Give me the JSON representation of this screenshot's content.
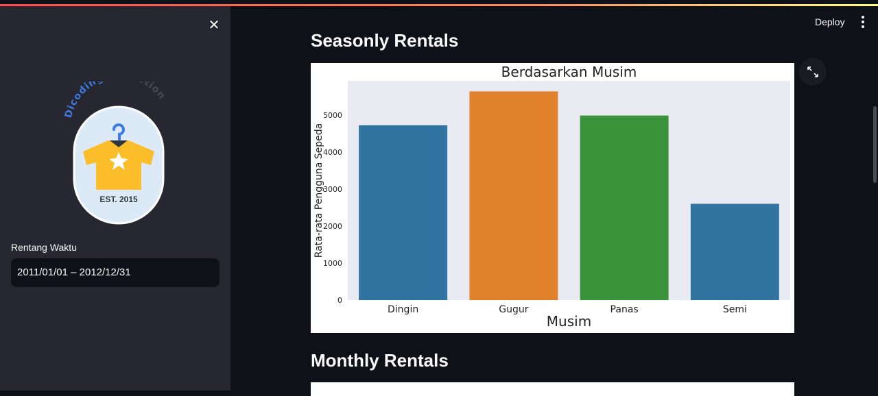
{
  "header": {
    "deploy_label": "Deploy"
  },
  "sidebar": {
    "logo": {
      "text_left": "Dicoding",
      "text_right": "Collection",
      "est": "EST. 2015"
    },
    "date_label": "Rentang Waktu",
    "date_value": "2011/01/01 – 2012/12/31"
  },
  "main": {
    "section1_title": "Seasonly Rentals",
    "section2_title": "Monthly Rentals"
  },
  "chart_data": {
    "type": "bar",
    "title": "Berdasarkan Musim",
    "xlabel": "Musim",
    "ylabel": "Rata-rata Pengguna Sepeda",
    "categories": [
      "Dingin",
      "Gugur",
      "Panas",
      "Semi"
    ],
    "values": [
      4728,
      5644,
      4992,
      2604
    ],
    "colors": [
      "#3274a1",
      "#e1812c",
      "#3a923a",
      "#3274a1"
    ],
    "ylim": [
      0,
      5930
    ],
    "yticks": [
      0,
      1000,
      2000,
      3000,
      4000,
      5000
    ],
    "grid": false
  }
}
